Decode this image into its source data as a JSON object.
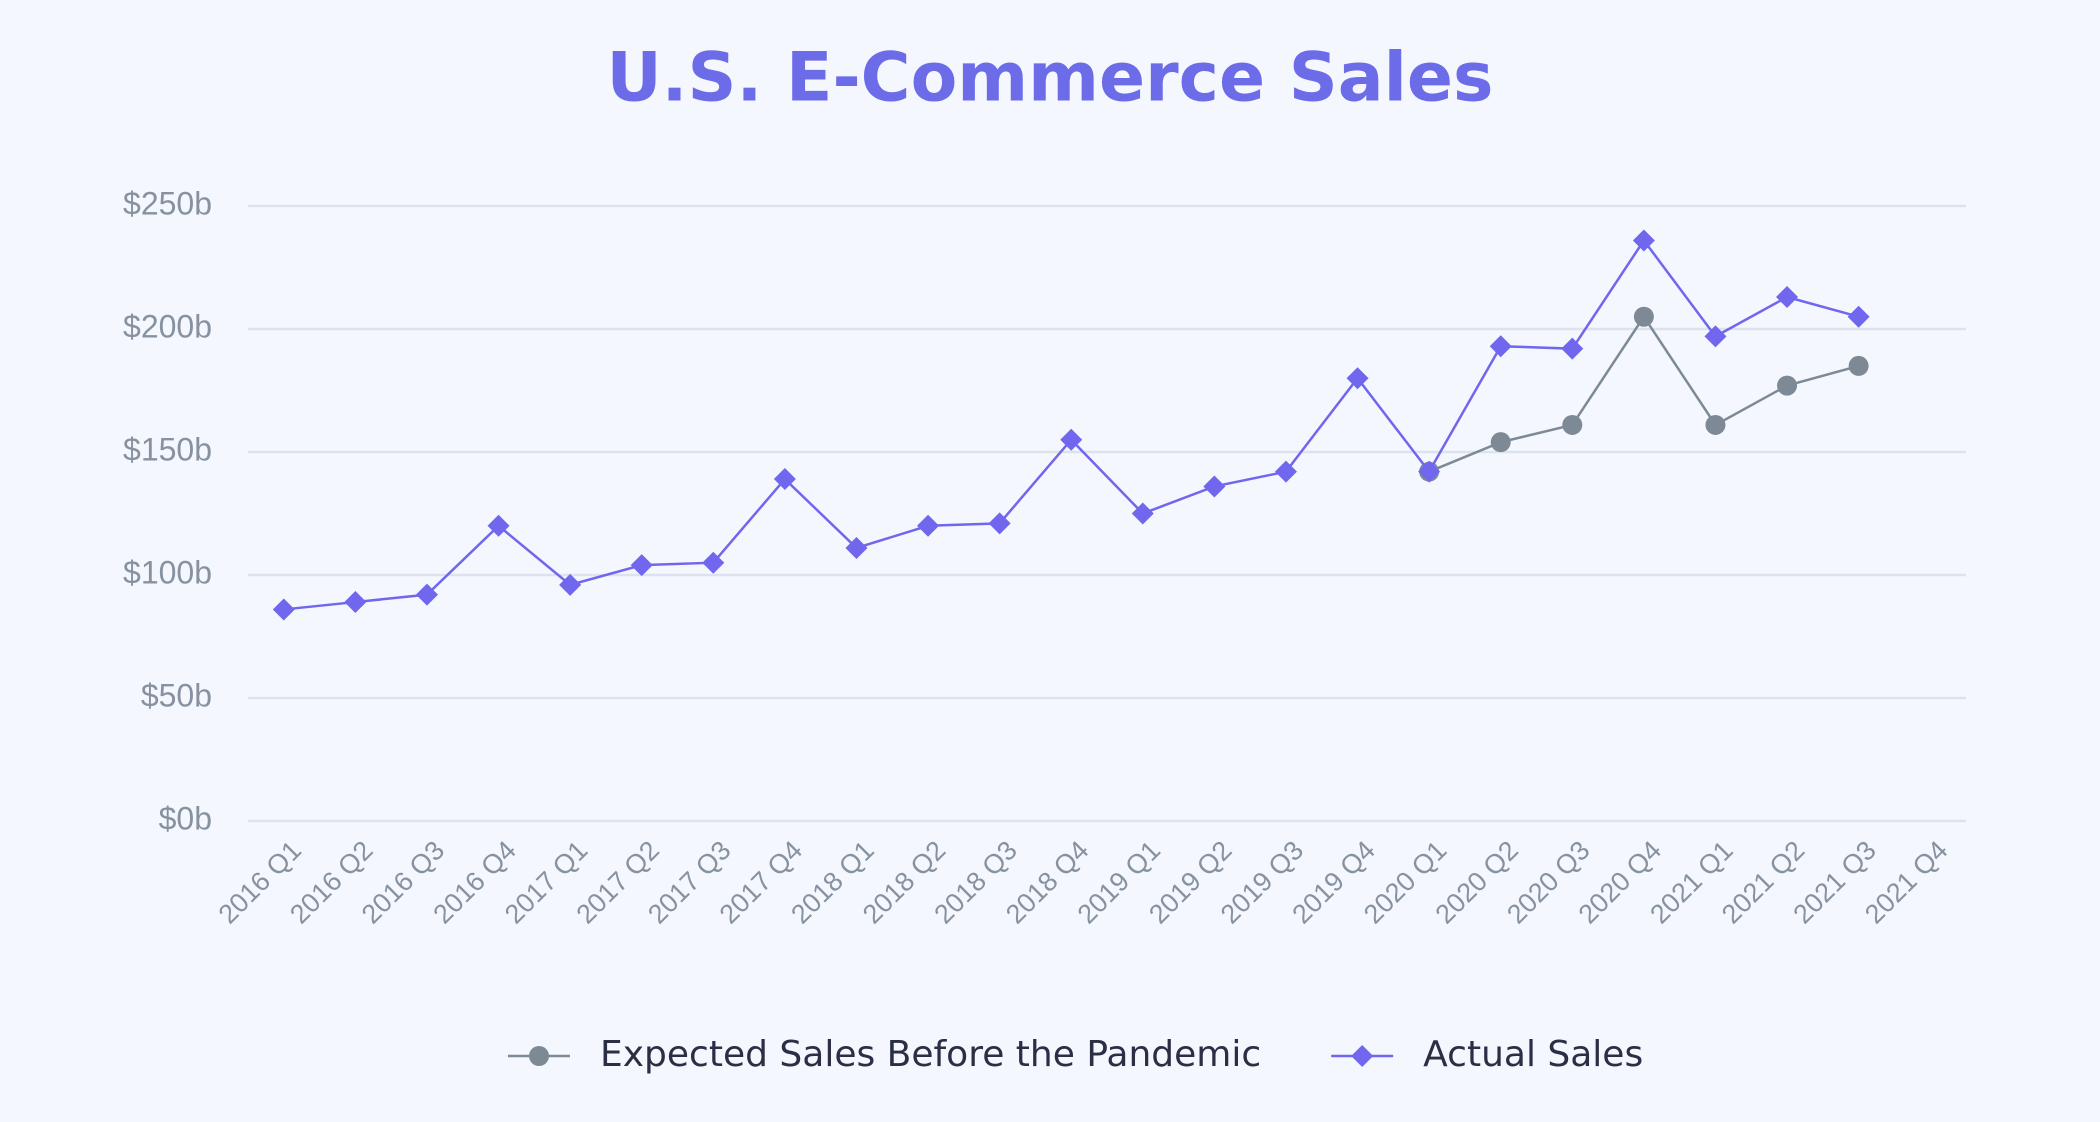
{
  "chart_data": {
    "type": "line",
    "title": "U.S. E-Commerce Sales",
    "categories": [
      "2016 Q1",
      "2016 Q2",
      "2016 Q3",
      "2016 Q4",
      "2017 Q1",
      "2017 Q2",
      "2017 Q3",
      "2017 Q4",
      "2018 Q1",
      "2018 Q2",
      "2018 Q3",
      "2018 Q4",
      "2019 Q1",
      "2019 Q2",
      "2019 Q3",
      "2019 Q4",
      "2020 Q1",
      "2020 Q2",
      "2020 Q3",
      "2020 Q4",
      "2021 Q1",
      "2021 Q2",
      "2021 Q3",
      "2021 Q4"
    ],
    "series": [
      {
        "name": "Expected Sales Before the Pandemic",
        "color": "#7d8a96",
        "marker": "circle",
        "values": [
          null,
          null,
          null,
          null,
          null,
          null,
          null,
          null,
          null,
          null,
          null,
          null,
          null,
          null,
          null,
          null,
          142,
          154,
          161,
          205,
          161,
          177,
          185,
          null
        ]
      },
      {
        "name": "Actual Sales",
        "color": "#7166ee",
        "marker": "diamond",
        "values": [
          86,
          89,
          92,
          120,
          96,
          104,
          105,
          139,
          111,
          120,
          121,
          155,
          125,
          136,
          142,
          180,
          142,
          193,
          192,
          236,
          197,
          213,
          205,
          null
        ]
      }
    ],
    "ylim": [
      0,
      250
    ],
    "yticks": [
      {
        "value": 0,
        "label": "$0b"
      },
      {
        "value": 50,
        "label": "$50b"
      },
      {
        "value": 100,
        "label": "$100b"
      },
      {
        "value": 150,
        "label": "$150b"
      },
      {
        "value": 200,
        "label": "$200b"
      },
      {
        "value": 250,
        "label": "$250b"
      }
    ],
    "grid": true,
    "legend": "bottom"
  }
}
